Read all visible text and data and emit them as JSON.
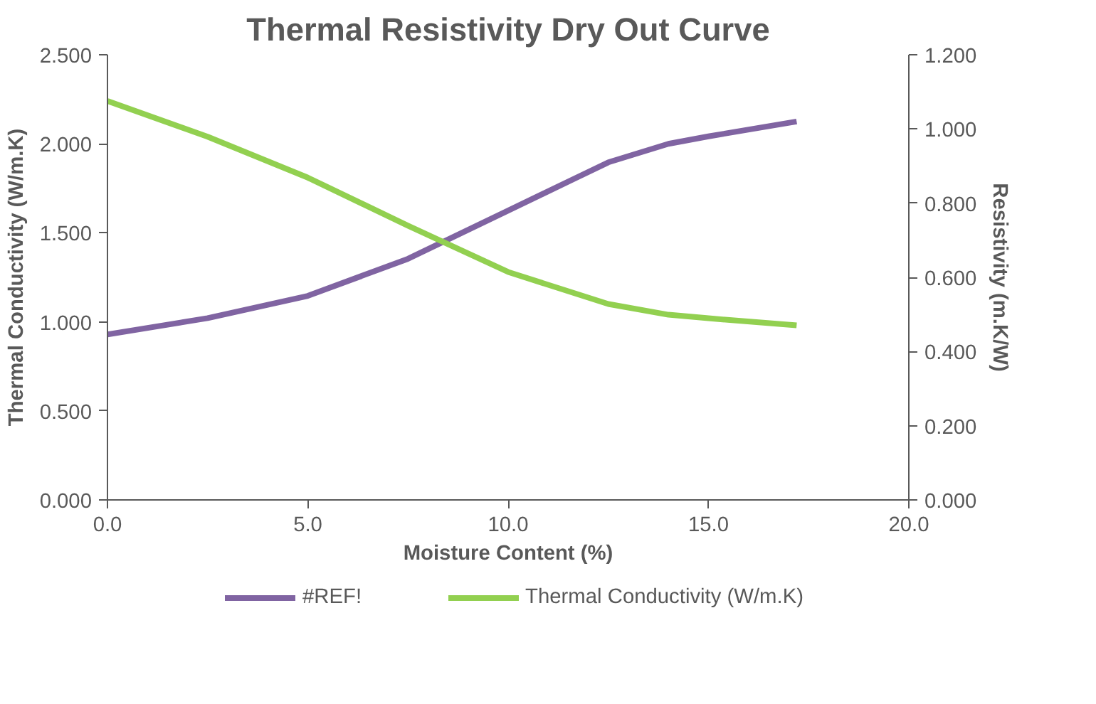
{
  "chart_data": {
    "type": "line",
    "title": "Thermal Resistivity Dry Out Curve",
    "xlabel": "Moisture Content (%)",
    "ylabel": "Thermal Conductivity (W/m.K)",
    "y2label": "Resistivity (m.K/W)",
    "x": [
      0,
      2.5,
      5,
      7.5,
      10,
      12.5,
      14,
      15,
      17.2
    ],
    "series": [
      {
        "name": "#REF!",
        "color": "#8064a2",
        "axis": "y2",
        "values": [
          0.446,
          0.49,
          0.55,
          0.65,
          0.78,
          0.91,
          0.96,
          0.98,
          1.02
        ]
      },
      {
        "name": "Thermal Conductivity (W/m.K)",
        "color": "#92d050",
        "values": [
          2.24,
          2.04,
          1.81,
          1.54,
          1.28,
          1.1,
          1.04,
          1.02,
          0.98
        ]
      }
    ],
    "xlim": [
      0,
      20
    ],
    "xticks": [
      {
        "value": 0,
        "label": "0.0"
      },
      {
        "value": 5,
        "label": "5.0"
      },
      {
        "value": 10,
        "label": "10.0"
      },
      {
        "value": 15,
        "label": "15.0"
      },
      {
        "value": 20,
        "label": "20.0"
      }
    ],
    "ylim": [
      0,
      2.5
    ],
    "yticks": [
      {
        "value": 0,
        "label": "0.000"
      },
      {
        "value": 0.5,
        "label": "0.500"
      },
      {
        "value": 1,
        "label": "1.000"
      },
      {
        "value": 1.5,
        "label": "1.500"
      },
      {
        "value": 2,
        "label": "2.000"
      },
      {
        "value": 2.5,
        "label": "2.500"
      }
    ],
    "y2lim": [
      0,
      1.2
    ],
    "y2ticks": [
      {
        "value": 0,
        "label": "0.000"
      },
      {
        "value": 0.2,
        "label": "0.200"
      },
      {
        "value": 0.4,
        "label": "0.400"
      },
      {
        "value": 0.6,
        "label": "0.600"
      },
      {
        "value": 0.8,
        "label": "0.800"
      },
      {
        "value": 1,
        "label": "1.000"
      },
      {
        "value": 1.2,
        "label": "1.200"
      }
    ],
    "grid": false,
    "legend": "bottom",
    "marker": "none",
    "line_style": "solid"
  }
}
